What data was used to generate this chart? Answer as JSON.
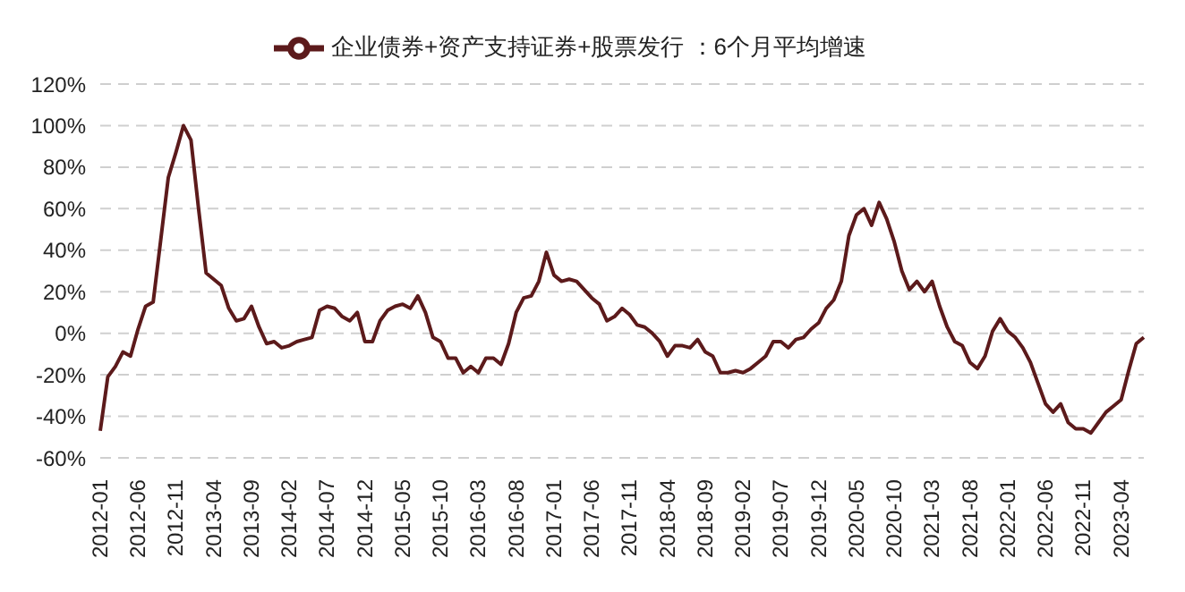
{
  "chart_data": {
    "type": "line",
    "legend": "top",
    "grid": "y",
    "marker": "none",
    "line_style": "solid",
    "categories": [
      "2012-01",
      null,
      null,
      null,
      null,
      "2012-06",
      null,
      null,
      null,
      null,
      "2012-11",
      null,
      null,
      null,
      null,
      "2013-04",
      null,
      null,
      null,
      null,
      "2013-09",
      null,
      null,
      null,
      null,
      "2014-02",
      null,
      null,
      null,
      null,
      "2014-07",
      null,
      null,
      null,
      null,
      "2014-12",
      null,
      null,
      null,
      null,
      "2015-05",
      null,
      null,
      null,
      null,
      "2015-10",
      null,
      null,
      null,
      null,
      "2016-03",
      null,
      null,
      null,
      null,
      "2016-08",
      null,
      null,
      null,
      null,
      "2017-01",
      null,
      null,
      null,
      null,
      "2017-06",
      null,
      null,
      null,
      null,
      "2017-11",
      null,
      null,
      null,
      null,
      "2018-04",
      null,
      null,
      null,
      null,
      "2018-09",
      null,
      null,
      null,
      null,
      "2019-02",
      null,
      null,
      null,
      null,
      "2019-07",
      null,
      null,
      null,
      null,
      "2019-12",
      null,
      null,
      null,
      null,
      "2020-05",
      null,
      null,
      null,
      null,
      "2020-10",
      null,
      null,
      null,
      null,
      "2021-03",
      null,
      null,
      null,
      null,
      "2021-08",
      null,
      null,
      null,
      null,
      "2022-01",
      null,
      null,
      null,
      null,
      "2022-06",
      null,
      null,
      null,
      null,
      "2022-11",
      null,
      null,
      null,
      null,
      "2023-04",
      null,
      null,
      null
    ],
    "ylim": [
      -60,
      120
    ],
    "yticks": [
      {
        "value": -60,
        "label": "-60%"
      },
      {
        "value": -40,
        "label": "-40%"
      },
      {
        "value": -20,
        "label": "-20%"
      },
      {
        "value": 0,
        "label": "0%"
      },
      {
        "value": 20,
        "label": "20%"
      },
      {
        "value": 40,
        "label": "40%"
      },
      {
        "value": 60,
        "label": "60%"
      },
      {
        "value": 80,
        "label": "80%"
      },
      {
        "value": 100,
        "label": "100%"
      },
      {
        "value": 120,
        "label": "120%"
      }
    ],
    "series": [
      {
        "name": "企业债券+资产支持证券+股票发行 ：6个月平均增速",
        "color": "#5c1a1b",
        "values": [
          -47,
          -21,
          -16,
          -9,
          -11,
          2,
          13,
          15,
          45,
          75,
          87,
          100,
          93,
          60,
          29,
          26,
          23,
          12,
          6,
          7,
          13,
          3,
          -5,
          -4,
          -7,
          -6,
          -4,
          -3,
          -2,
          11,
          13,
          12,
          8,
          6,
          10,
          -4,
          -4,
          6,
          11,
          13,
          14,
          12,
          18,
          10,
          -2,
          -4,
          -12,
          -12,
          -19,
          -16,
          -19,
          -12,
          -12,
          -15,
          -5,
          10,
          17,
          18,
          25,
          39,
          28,
          25,
          26,
          25,
          21,
          17,
          14,
          6,
          8,
          12,
          9,
          4,
          3,
          0,
          -4,
          -11,
          -6,
          -6,
          -7,
          -3,
          -9,
          -11,
          -19,
          -19,
          -18,
          -19,
          -17,
          -14,
          -11,
          -4,
          -4,
          -7,
          -3,
          -2,
          2,
          5,
          12,
          16,
          25,
          47,
          57,
          60,
          52,
          63,
          55,
          44,
          30,
          21,
          25,
          20,
          25,
          13,
          3,
          -4,
          -6,
          -14,
          -17,
          -11,
          1,
          7,
          1,
          -2,
          -7,
          -14,
          -24,
          -34,
          -38,
          -34,
          -43,
          -46,
          -46,
          -48,
          -43,
          -38,
          -35,
          -32,
          -18,
          -5,
          -2
        ]
      }
    ]
  }
}
